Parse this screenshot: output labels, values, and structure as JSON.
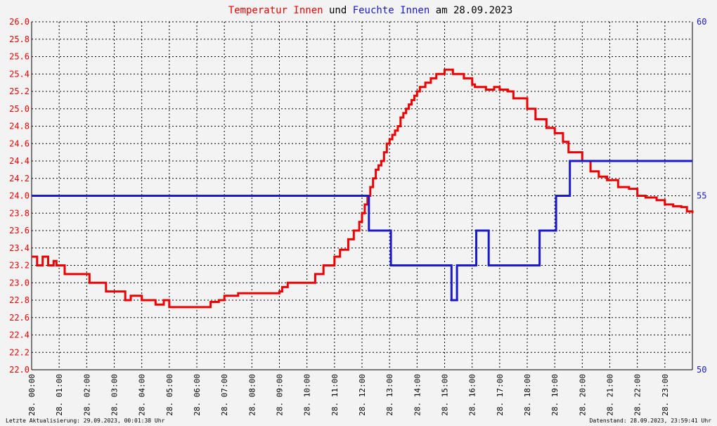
{
  "title": {
    "part1": "Temperatur Innen",
    "part2": " und ",
    "part3": "Feuchte Innen",
    "part4": " am 28.09.2023"
  },
  "colors": {
    "temperature": "#ee0000",
    "humidity": "#1a1acc",
    "text_dark": "#000000",
    "background": "#f3f3f3"
  },
  "footer": {
    "left": "Letzte Aktualisierung: 29.09.2023, 00:01:38 Uhr",
    "right": "Datenstand: 28.09.2023, 23:59:41 Uhr"
  },
  "chart_data": {
    "type": "line",
    "grid": true,
    "x_range_hours": [
      0,
      24
    ],
    "x_ticks": [
      {
        "hour": 0,
        "label": "28. 00:00"
      },
      {
        "hour": 1,
        "label": "28. 01:00"
      },
      {
        "hour": 2,
        "label": "28. 02:00"
      },
      {
        "hour": 3,
        "label": "28. 03:00"
      },
      {
        "hour": 4,
        "label": "28. 04:00"
      },
      {
        "hour": 5,
        "label": "28. 05:00"
      },
      {
        "hour": 6,
        "label": "28. 06:00"
      },
      {
        "hour": 7,
        "label": "28. 07:00"
      },
      {
        "hour": 8,
        "label": "28. 08:00"
      },
      {
        "hour": 9,
        "label": "28. 09:00"
      },
      {
        "hour": 10,
        "label": "28. 10:00"
      },
      {
        "hour": 11,
        "label": "28. 11:00"
      },
      {
        "hour": 12,
        "label": "28. 12:00"
      },
      {
        "hour": 13,
        "label": "28. 13:00"
      },
      {
        "hour": 14,
        "label": "28. 14:00"
      },
      {
        "hour": 15,
        "label": "28. 15:00"
      },
      {
        "hour": 16,
        "label": "28. 16:00"
      },
      {
        "hour": 17,
        "label": "28. 17:00"
      },
      {
        "hour": 18,
        "label": "28. 18:00"
      },
      {
        "hour": 19,
        "label": "28. 19:00"
      },
      {
        "hour": 20,
        "label": "28. 20:00"
      },
      {
        "hour": 21,
        "label": "28. 21:00"
      },
      {
        "hour": 22,
        "label": "28. 22:00"
      },
      {
        "hour": 23,
        "label": "28. 23:00"
      }
    ],
    "y_left": {
      "range": [
        22.0,
        26.0
      ],
      "ticks": [
        "22.0",
        "22.2",
        "22.4",
        "22.6",
        "22.8",
        "23.0",
        "23.2",
        "23.4",
        "23.6",
        "23.8",
        "24.0",
        "24.2",
        "24.4",
        "24.6",
        "24.8",
        "25.0",
        "25.2",
        "25.4",
        "25.6",
        "25.8",
        "26.0"
      ]
    },
    "y_right": {
      "range": [
        50,
        60
      ],
      "ticks": [
        "50",
        "55",
        "60"
      ]
    },
    "series": [
      {
        "name": "Temperatur Innen",
        "axis": "left",
        "x": [
          0,
          0.2,
          0.4,
          0.6,
          0.8,
          0.9,
          1.2,
          1.9,
          2.1,
          2.7,
          3.1,
          3.4,
          3.6,
          4.0,
          4.5,
          4.8,
          5.0,
          5.2,
          5.5,
          6.0,
          6.5,
          6.8,
          7.0,
          7.2,
          7.5,
          8.0,
          8.5,
          9.0,
          9.1,
          9.3,
          9.5,
          10.0,
          10.3,
          10.6,
          11.0,
          11.2,
          11.5,
          11.7,
          11.9,
          12.0,
          12.1,
          12.2,
          12.3,
          12.4,
          12.5,
          12.6,
          12.7,
          12.8,
          12.9,
          13.0,
          13.1,
          13.2,
          13.3,
          13.4,
          13.5,
          13.6,
          13.7,
          13.8,
          13.9,
          14.0,
          14.1,
          14.3,
          14.5,
          14.7,
          15.0,
          15.3,
          15.7,
          16.0,
          16.1,
          16.3,
          16.5,
          16.8,
          17.0,
          17.3,
          17.5,
          18.0,
          18.3,
          18.7,
          19.0,
          19.3,
          19.5,
          20.0,
          20.3,
          20.6,
          20.9,
          21.3,
          21.7,
          22.0,
          22.3,
          22.7,
          23.0,
          23.3,
          23.6,
          23.8,
          24.0
        ],
        "values": [
          23.3,
          23.2,
          23.3,
          23.2,
          23.25,
          23.2,
          23.1,
          23.1,
          23.0,
          22.9,
          22.9,
          22.8,
          22.85,
          22.8,
          22.75,
          22.8,
          22.72,
          22.72,
          22.72,
          22.72,
          22.78,
          22.8,
          22.85,
          22.85,
          22.88,
          22.88,
          22.88,
          22.9,
          22.95,
          23.0,
          23.0,
          23.0,
          23.1,
          23.2,
          23.3,
          23.38,
          23.5,
          23.6,
          23.7,
          23.8,
          23.9,
          24.0,
          24.1,
          24.2,
          24.3,
          24.35,
          24.4,
          24.5,
          24.6,
          24.65,
          24.7,
          24.75,
          24.8,
          24.9,
          24.95,
          25.0,
          25.05,
          25.1,
          25.15,
          25.2,
          25.25,
          25.3,
          25.35,
          25.4,
          25.45,
          25.4,
          25.35,
          25.28,
          25.25,
          25.25,
          25.22,
          25.25,
          25.22,
          25.2,
          25.12,
          25.0,
          24.88,
          24.78,
          24.72,
          24.62,
          24.5,
          24.4,
          24.28,
          24.22,
          24.18,
          24.1,
          24.08,
          24.0,
          23.98,
          23.95,
          23.9,
          23.88,
          23.87,
          23.82,
          23.8
        ]
      },
      {
        "name": "Feuchte Innen",
        "axis": "right",
        "x": [
          0,
          12.2,
          12.25,
          13.0,
          13.05,
          15.2,
          15.25,
          15.4,
          15.45,
          16.1,
          16.15,
          16.55,
          16.6,
          16.85,
          16.9,
          18.4,
          18.45,
          19.0,
          19.05,
          19.5,
          19.55,
          24.0
        ],
        "values": [
          55,
          55,
          54,
          54,
          53,
          53,
          52,
          52,
          53,
          53,
          54,
          54,
          53,
          53,
          53,
          53,
          54,
          54,
          55,
          55,
          56,
          56
        ]
      }
    ]
  }
}
